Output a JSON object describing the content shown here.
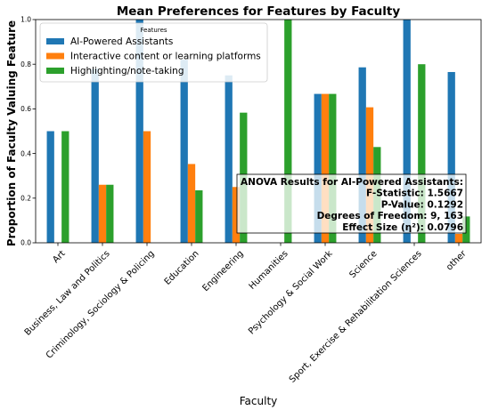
{
  "chart_data": {
    "type": "bar",
    "title": "Mean Preferences for Features by Faculty",
    "xlabel": "Faculty",
    "ylabel": "Proportion of Faculty Valuing Feature",
    "ylim": [
      0,
      1.0
    ],
    "yticks": [
      0.0,
      0.2,
      0.4,
      0.6,
      0.8,
      1.0
    ],
    "ytick_labels": [
      "0.0",
      "0.2",
      "0.4",
      "0.6",
      "0.8",
      "1.0"
    ],
    "legend_title": "Features",
    "legend_position": "top-left",
    "grid": false,
    "categories": [
      "Art",
      "Business, Law and Politics",
      "Criminology, Sociology & Policing",
      "Education",
      "Engineering",
      "Humanities",
      "Psychology & Social Work",
      "Science",
      "Sport, Exercise & Rehabilitation Sciences",
      "other"
    ],
    "series": [
      {
        "name": "AI-Powered Assistants",
        "color": "#1f77b4",
        "values": [
          0.5,
          0.78,
          1.0,
          0.82,
          0.75,
          0.0,
          0.667,
          0.786,
          1.0,
          0.765
        ]
      },
      {
        "name": "Interactive content or learning platforms",
        "color": "#ff7f0e",
        "values": [
          0.0,
          0.26,
          0.5,
          0.353,
          0.25,
          0.0,
          0.667,
          0.607,
          0.0,
          0.04
        ]
      },
      {
        "name": "Highlighting/note-taking",
        "color": "#2ca02c",
        "values": [
          0.5,
          0.26,
          0.0,
          0.235,
          0.583,
          1.0,
          0.667,
          0.429,
          0.8,
          0.118
        ]
      }
    ],
    "annotation": {
      "lines": [
        "ANOVA Results for AI-Powered Assistants:",
        "F-Statistic: 1.5667",
        "P-Value: 0.1292",
        "Degrees of Freedom: 9, 163",
        "Effect Size (η²): 0.0796"
      ]
    }
  }
}
